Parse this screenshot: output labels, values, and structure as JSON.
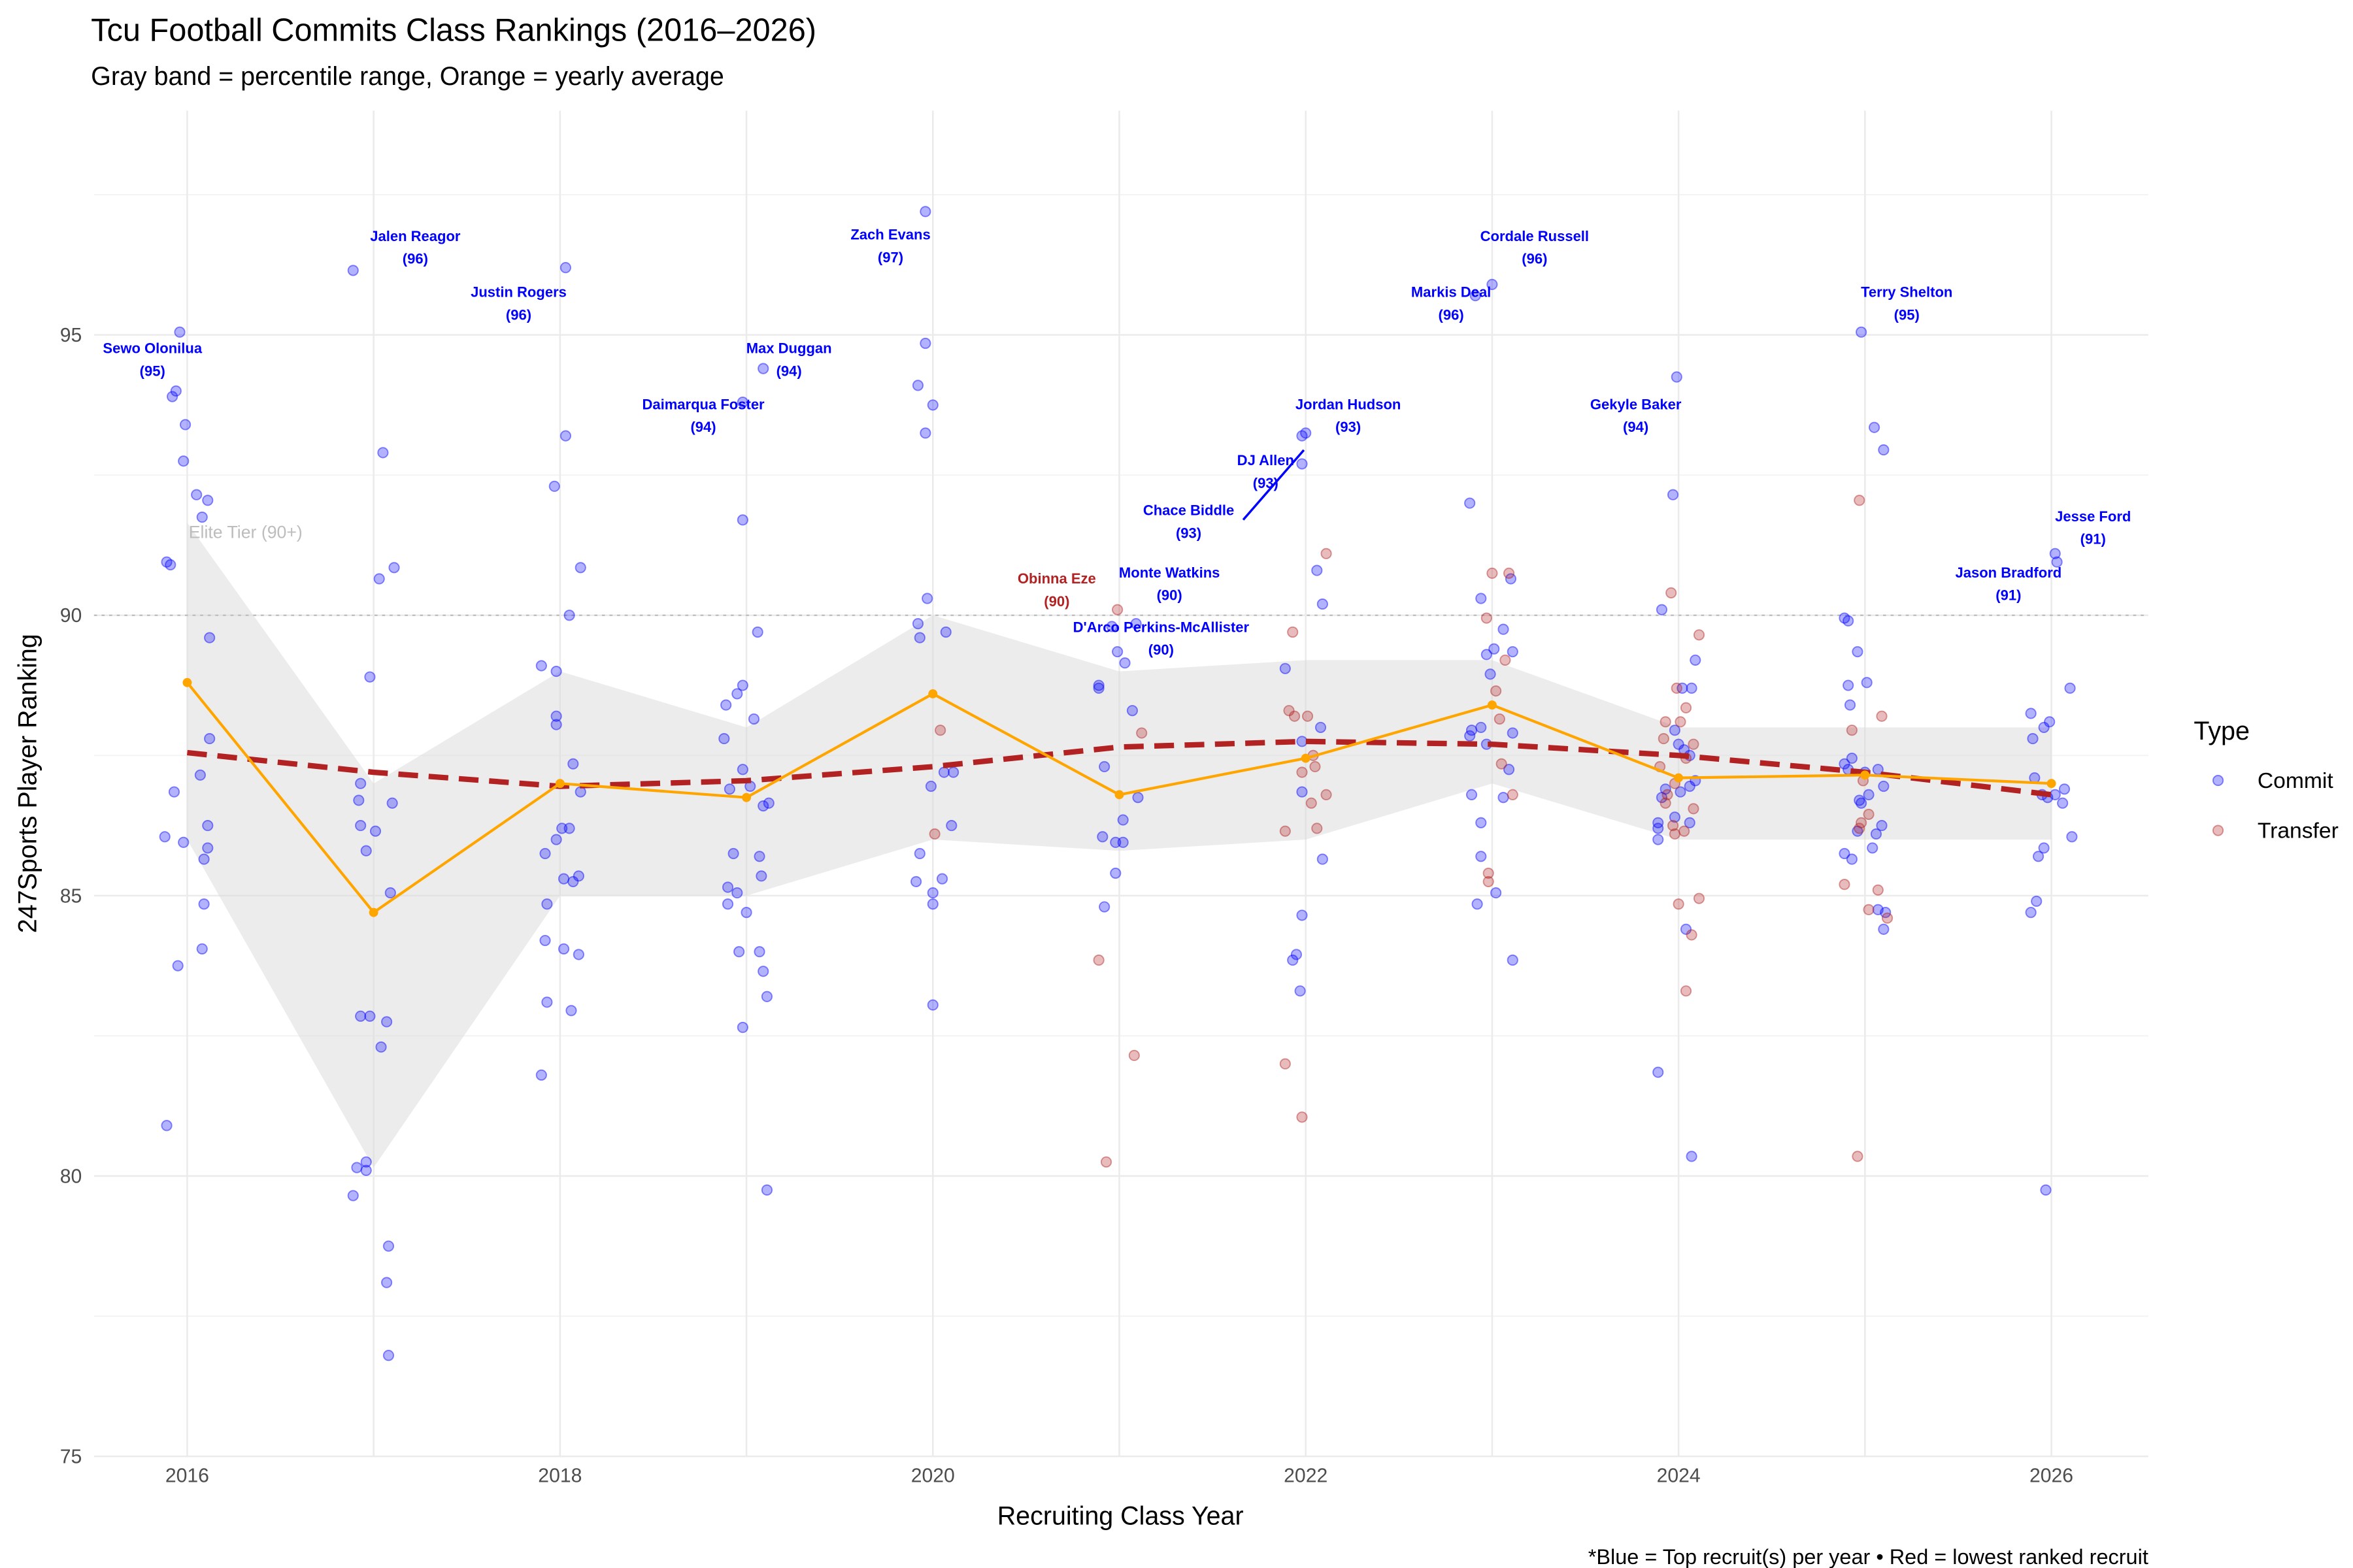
{
  "chart_data": {
    "type": "scatter",
    "title": "Tcu Football Commits Class Rankings (2016–2026)",
    "subtitle": "Gray band = percentile range, Orange = yearly average",
    "x_label": "Recruiting Class Year",
    "y_label": "247Sports Player Ranking",
    "caption": "*Blue = Top recruit(s) per year • Red = lowest ranked recruit",
    "legend_title": "Type",
    "legend": "right",
    "grid": true,
    "xlim": [
      2015.5,
      2026.52
    ],
    "ylim": [
      75,
      99
    ],
    "xticks": [
      2016,
      2018,
      2020,
      2022,
      2024,
      2026
    ],
    "xminor": [
      2017,
      2019,
      2021,
      2023,
      2025
    ],
    "yticks": [
      75,
      80,
      85,
      90,
      95
    ],
    "yminor": [
      77.5,
      82.5,
      87.5,
      92.5,
      97.5
    ],
    "reference_line": {
      "value": 90,
      "label": "Elite Tier (90+)",
      "color": "#bdbdbd"
    },
    "years": [
      2016,
      2017,
      2018,
      2019,
      2020,
      2021,
      2022,
      2023,
      2024,
      2025,
      2026
    ],
    "percentile_band": {
      "color": "#d9d9d9",
      "lower": [
        86,
        80.15,
        85,
        85,
        86,
        85.8,
        86,
        87,
        86,
        86,
        86
      ],
      "upper": [
        91.65,
        87,
        89,
        88,
        90,
        89,
        89.2,
        89.2,
        88,
        88,
        88
      ]
    },
    "yearly_average": {
      "color": "#ffa500",
      "values": [
        88.8,
        84.7,
        87.0,
        86.75,
        88.6,
        86.8,
        87.45,
        88.4,
        87.1,
        87.15,
        87.0
      ]
    },
    "trend": {
      "color": "#b22222",
      "values": [
        87.55,
        87.2,
        86.95,
        87.05,
        87.3,
        87.65,
        87.75,
        87.7,
        87.5,
        87.2,
        86.8
      ]
    },
    "series": [
      {
        "name": "Commit",
        "color": "#0000ff",
        "x": [
          2015.96,
          2015.94,
          2015.92,
          2015.99,
          2015.98,
          2016.05,
          2016.11,
          2016.08,
          2015.89,
          2015.91,
          2016.12,
          2016.12,
          2016.07,
          2015.93,
          2016.11,
          2015.88,
          2015.98,
          2016.11,
          2016.09,
          2016.09,
          2016.08,
          2015.95,
          2015.89,
          2016.89,
          2017.05,
          2017.11,
          2017.03,
          2016.98,
          2016.93,
          2016.92,
          2017.1,
          2016.93,
          2017.01,
          2016.96,
          2017.09,
          2016.93,
          2016.98,
          2017.07,
          2017.04,
          2016.96,
          2016.91,
          2016.96,
          2016.89,
          2017.08,
          2017.07,
          2017.08,
          2018.03,
          2018.03,
          2017.97,
          2018.11,
          2018.05,
          2017.9,
          2017.98,
          2017.98,
          2017.98,
          2018.07,
          2018.11,
          2018.05,
          2018.01,
          2017.98,
          2017.92,
          2018.1,
          2018.02,
          2018.07,
          2017.93,
          2017.92,
          2018.02,
          2018.1,
          2017.93,
          2018.06,
          2017.9,
          2019.09,
          2018.98,
          2018.98,
          2019.06,
          2018.98,
          2018.95,
          2018.89,
          2019.04,
          2018.88,
          2018.98,
          2019.02,
          2018.91,
          2019.12,
          2019.09,
          2018.93,
          2019.07,
          2019.08,
          2018.9,
          2018.95,
          2018.9,
          2019.0,
          2018.96,
          2019.07,
          2019.09,
          2019.11,
          2018.98,
          2019.11,
          2019.96,
          2019.96,
          2019.92,
          2020.0,
          2019.96,
          2019.97,
          2019.92,
          2019.93,
          2020.07,
          2020.06,
          2020.11,
          2019.99,
          2020.1,
          2019.93,
          2020.05,
          2019.91,
          2020.0,
          2020.0,
          2020.0,
          2021.09,
          2020.96,
          2020.99,
          2021.03,
          2020.89,
          2020.89,
          2021.07,
          2020.92,
          2021.1,
          2021.02,
          2020.91,
          2020.98,
          2021.02,
          2020.98,
          2020.92,
          2022.0,
          2021.98,
          2021.98,
          2022.06,
          2022.09,
          2021.89,
          2022.08,
          2021.98,
          2021.98,
          2022.09,
          2021.98,
          2021.95,
          2021.93,
          2021.97,
          2023.0,
          2022.91,
          2022.88,
          2023.1,
          2022.94,
          2023.06,
          2023.01,
          2023.11,
          2022.97,
          2022.99,
          2022.94,
          2022.89,
          2023.11,
          2022.88,
          2022.97,
          2023.09,
          2022.89,
          2023.06,
          2022.94,
          2022.94,
          2023.02,
          2022.92,
          2023.11,
          2023.99,
          2023.97,
          2023.91,
          2024.09,
          2024.02,
          2024.07,
          2023.98,
          2024.0,
          2024.03,
          2024.06,
          2024.09,
          2023.93,
          2024.06,
          2024.01,
          2023.91,
          2023.98,
          2024.06,
          2023.89,
          2023.89,
          2023.89,
          2024.04,
          2023.89,
          2024.07,
          2024.98,
          2025.05,
          2025.1,
          2024.89,
          2024.91,
          2024.96,
          2025.01,
          2024.91,
          2024.92,
          2024.93,
          2024.89,
          2025.07,
          2024.91,
          2025.0,
          2025.1,
          2025.02,
          2024.97,
          2024.98,
          2025.09,
          2024.96,
          2025.06,
          2025.04,
          2024.89,
          2024.93,
          2025.07,
          2025.11,
          2025.1,
          2026.02,
          2026.03,
          2026.1,
          2025.89,
          2025.99,
          2025.96,
          2025.9,
          2025.91,
          2026.07,
          2026.02,
          2025.95,
          2025.98,
          2026.06,
          2026.11,
          2025.96,
          2025.93,
          2025.92,
          2025.89,
          2025.97
        ],
        "values": [
          95.05,
          94.0,
          93.9,
          93.4,
          92.75,
          92.15,
          92.05,
          91.75,
          90.95,
          90.9,
          89.6,
          87.8,
          87.15,
          86.85,
          86.25,
          86.05,
          85.95,
          85.85,
          85.65,
          84.85,
          84.05,
          83.75,
          80.9,
          96.15,
          92.9,
          90.85,
          90.65,
          88.9,
          87.0,
          86.7,
          86.65,
          86.25,
          86.15,
          85.8,
          85.05,
          82.85,
          82.85,
          82.75,
          82.3,
          80.25,
          80.15,
          80.1,
          79.65,
          78.75,
          78.1,
          76.8,
          96.2,
          93.2,
          92.3,
          90.85,
          90.0,
          89.1,
          89.0,
          88.2,
          88.05,
          87.35,
          86.85,
          86.2,
          86.2,
          86.0,
          85.75,
          85.35,
          85.3,
          85.25,
          84.85,
          84.2,
          84.05,
          83.95,
          83.1,
          82.95,
          81.8,
          94.4,
          93.8,
          91.7,
          89.7,
          88.75,
          88.6,
          88.4,
          88.15,
          87.8,
          87.25,
          86.95,
          86.9,
          86.65,
          86.6,
          85.75,
          85.7,
          85.35,
          85.15,
          85.05,
          84.85,
          84.7,
          84.0,
          84.0,
          83.65,
          83.2,
          82.65,
          79.75,
          97.2,
          94.85,
          94.1,
          93.75,
          93.25,
          90.3,
          89.85,
          89.6,
          89.7,
          87.2,
          87.2,
          86.95,
          86.25,
          85.75,
          85.3,
          85.25,
          85.05,
          84.85,
          83.05,
          89.85,
          89.8,
          89.35,
          89.15,
          88.75,
          88.7,
          88.3,
          87.3,
          86.75,
          86.35,
          86.05,
          85.95,
          85.95,
          85.4,
          84.8,
          93.25,
          93.2,
          92.7,
          90.8,
          90.2,
          89.05,
          88.0,
          87.75,
          86.85,
          85.65,
          84.65,
          83.95,
          83.85,
          83.3,
          95.9,
          95.7,
          92.0,
          90.65,
          90.3,
          89.75,
          89.4,
          89.35,
          89.3,
          88.95,
          88.0,
          87.95,
          87.9,
          87.85,
          87.7,
          87.25,
          86.8,
          86.75,
          86.3,
          85.7,
          85.05,
          84.85,
          83.85,
          94.25,
          92.15,
          90.1,
          89.2,
          88.7,
          88.7,
          87.95,
          87.7,
          87.6,
          87.5,
          87.05,
          86.9,
          86.95,
          86.85,
          86.75,
          86.4,
          86.3,
          86.3,
          86.2,
          86.0,
          84.4,
          81.85,
          80.35,
          95.05,
          93.35,
          92.95,
          89.95,
          89.9,
          89.35,
          88.8,
          88.75,
          88.4,
          87.45,
          87.35,
          87.25,
          87.25,
          87.2,
          86.95,
          86.8,
          86.7,
          86.65,
          86.25,
          86.15,
          86.1,
          85.85,
          85.75,
          85.65,
          84.75,
          84.7,
          84.4,
          91.1,
          90.95,
          88.7,
          88.25,
          88.1,
          88.0,
          87.8,
          87.1,
          86.9,
          86.8,
          86.8,
          86.75,
          86.65,
          86.05,
          85.85,
          85.7,
          84.9,
          84.7,
          79.75
        ]
      },
      {
        "name": "Transfer",
        "color": "#b22222",
        "x": [
          2020.04,
          2020.01,
          2020.99,
          2021.12,
          2020.89,
          2021.08,
          2020.93,
          2022.11,
          2021.93,
          2021.91,
          2022.01,
          2021.94,
          2022.04,
          2022.05,
          2021.98,
          2022.11,
          2022.03,
          2022.06,
          2021.89,
          2021.89,
          2021.98,
          2023.0,
          2023.09,
          2022.97,
          2023.07,
          2023.02,
          2023.04,
          2023.05,
          2023.11,
          2022.98,
          2022.98,
          2023.96,
          2024.11,
          2023.99,
          2024.04,
          2024.01,
          2023.93,
          2023.92,
          2024.08,
          2024.04,
          2023.9,
          2023.98,
          2023.94,
          2023.93,
          2024.08,
          2023.97,
          2024.03,
          2023.98,
          2024.11,
          2024.0,
          2024.07,
          2024.04,
          2024.97,
          2025.09,
          2024.93,
          2024.99,
          2025.02,
          2024.98,
          2024.97,
          2024.89,
          2025.07,
          2025.02,
          2025.12,
          2024.96
        ],
        "values": [
          87.95,
          86.1,
          90.1,
          87.9,
          83.85,
          82.15,
          80.25,
          91.1,
          89.7,
          88.3,
          88.2,
          88.2,
          87.5,
          87.3,
          87.2,
          86.8,
          86.65,
          86.2,
          86.15,
          82.0,
          81.05,
          90.75,
          90.75,
          89.95,
          89.2,
          88.65,
          88.15,
          87.35,
          86.8,
          85.4,
          85.25,
          90.4,
          89.65,
          88.7,
          88.35,
          88.1,
          88.1,
          87.8,
          87.7,
          87.45,
          87.3,
          87.0,
          86.8,
          86.65,
          86.55,
          86.25,
          86.15,
          86.1,
          84.95,
          84.85,
          84.3,
          83.3,
          92.05,
          88.2,
          87.95,
          87.05,
          86.45,
          86.3,
          86.2,
          85.2,
          85.1,
          84.75,
          84.6,
          80.35
        ]
      }
    ],
    "annotations": [
      {
        "name": "Sewo Olonilua",
        "value": 95,
        "value_label": "(95)",
        "x": 2015.96,
        "color": "#0000ff"
      },
      {
        "name": "Jalen Reagor",
        "value": 96,
        "value_label": "(96)",
        "x": 2016.89,
        "color": "#0000ff"
      },
      {
        "name": "Justin Rogers",
        "value": 96,
        "value_label": "(96)",
        "x": 2018.03,
        "color": "#0000ff"
      },
      {
        "name": "Zach Evans",
        "value": 97,
        "value_label": "(97)",
        "x": 2019.96,
        "color": "#0000ff"
      },
      {
        "name": "Max Duggan",
        "value": 94,
        "value_label": "(94)",
        "x": 2019.09,
        "color": "#0000ff"
      },
      {
        "name": "Daimarqua Foster",
        "value": 94,
        "value_label": "(94)",
        "x": 2018.98,
        "color": "#0000ff"
      },
      {
        "name": "Cordale Russell",
        "value": 96,
        "value_label": "(96)",
        "x": 2023.0,
        "color": "#0000ff"
      },
      {
        "name": "Markis Deal",
        "value": 96,
        "value_label": "(96)",
        "x": 2022.91,
        "color": "#0000ff"
      },
      {
        "name": "Jordan Hudson",
        "value": 93,
        "value_label": "(93)",
        "x": 2022.0,
        "color": "#0000ff"
      },
      {
        "name": "DJ Allen",
        "value": 93,
        "value_label": "(93)",
        "x": 2021.98,
        "color": "#0000ff"
      },
      {
        "name": "Chace Biddle",
        "value": 93,
        "value_label": "(93)",
        "x": 2021.99,
        "color": "#0000ff"
      },
      {
        "name": "Gekyle Baker",
        "value": 94,
        "value_label": "(94)",
        "x": 2023.99,
        "color": "#0000ff"
      },
      {
        "name": "Terry Shelton",
        "value": 95,
        "value_label": "(95)",
        "x": 2024.98,
        "color": "#0000ff"
      },
      {
        "name": "Jesse Ford",
        "value": 91,
        "value_label": "(91)",
        "x": 2026.02,
        "color": "#0000ff"
      },
      {
        "name": "Jason Bradford",
        "value": 91,
        "value_label": "(91)",
        "x": 2026.03,
        "color": "#0000ff"
      },
      {
        "name": "Obinna Eze",
        "value": 90,
        "value_label": "(90)",
        "x": 2020.99,
        "color": "#b22222"
      },
      {
        "name": "Monte Watkins",
        "value": 90,
        "value_label": "(90)",
        "x": 2021.09,
        "color": "#0000ff"
      },
      {
        "name": "D'Arco Perkins-McAllister",
        "value": 90,
        "value_label": "(90)",
        "x": 2020.98,
        "color": "#0000ff"
      }
    ]
  }
}
